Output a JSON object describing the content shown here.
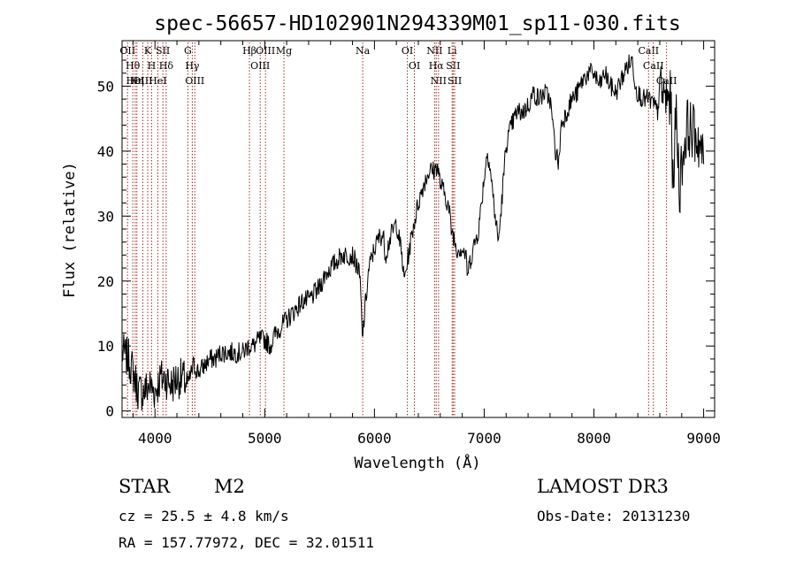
{
  "chart_data": {
    "type": "line",
    "title": "spec-56657-HD102901N294339M01_sp11-030.fits",
    "xlabel": "Wavelength (Å)",
    "ylabel": "Flux (relative)",
    "xlim": [
      3700,
      9100
    ],
    "ylim": [
      -1,
      57
    ],
    "x_ticks": [
      4000,
      5000,
      6000,
      7000,
      8000,
      9000
    ],
    "x_tick_labels": [
      "4000",
      "5000",
      "6000",
      "7000",
      "8000",
      "9000"
    ],
    "y_ticks": [
      0,
      10,
      20,
      30,
      40,
      50
    ],
    "y_tick_labels": [
      "0",
      "10",
      "20",
      "30",
      "40",
      "50"
    ],
    "grid": false,
    "line_color": "#000000",
    "marker_color": "#a0281e",
    "series": [
      {
        "x": [
          3700,
          3760,
          3800,
          3850,
          3900,
          3950,
          4000,
          4050,
          4100,
          4150,
          4200,
          4250,
          4300,
          4350,
          4400,
          4450,
          4500,
          4550,
          4600,
          4650,
          4700,
          4750,
          4800,
          4850,
          4900,
          4950,
          5000,
          5050,
          5100,
          5150,
          5200,
          5250,
          5300,
          5350,
          5400,
          5450,
          5500,
          5550,
          5600,
          5650,
          5700,
          5750,
          5800,
          5850,
          5870,
          5890,
          5910,
          5950,
          6000,
          6050,
          6080,
          6100,
          6150,
          6200,
          6250,
          6270,
          6300,
          6350,
          6400,
          6450,
          6500,
          6550,
          6570,
          6600,
          6650,
          6680,
          6700,
          6720,
          6750,
          6800,
          6830,
          6850,
          6870,
          6900,
          6950,
          7000,
          7030,
          7050,
          7100,
          7130,
          7150,
          7200,
          7250,
          7300,
          7350,
          7400,
          7450,
          7500,
          7550,
          7600,
          7650,
          7680,
          7700,
          7750,
          7800,
          7850,
          7900,
          7950,
          8000,
          8050,
          8100,
          8150,
          8200,
          8250,
          8300,
          8350,
          8380,
          8400,
          8450,
          8500,
          8550,
          8580,
          8600,
          8650,
          8700,
          8720,
          8750,
          8780,
          8800,
          8850,
          8900,
          8950,
          9000
        ],
        "y": [
          9,
          8,
          6,
          3,
          3,
          4,
          3,
          5,
          5,
          4,
          5,
          5,
          4,
          7,
          6,
          7,
          8,
          8,
          9,
          9,
          9,
          9,
          9,
          10,
          10,
          11,
          11,
          10,
          12,
          13,
          14,
          15,
          16,
          17,
          17,
          18,
          19,
          21,
          22,
          23,
          24,
          24,
          24,
          22,
          20,
          11,
          15,
          22,
          25,
          27,
          27,
          24,
          27,
          29,
          24,
          20,
          23,
          28,
          32,
          35,
          37,
          37,
          38,
          35,
          33,
          31,
          28,
          27,
          25,
          25,
          24,
          21,
          23,
          25,
          28,
          36,
          40,
          38,
          30,
          26,
          30,
          41,
          44,
          46,
          46,
          47,
          49,
          48,
          49,
          48,
          40,
          38,
          44,
          46,
          48,
          49,
          51,
          52,
          52,
          50,
          52,
          50,
          49,
          51,
          53,
          54,
          50,
          49,
          48,
          48,
          47,
          46,
          50,
          48,
          48,
          35,
          46,
          34,
          38,
          44,
          43,
          42,
          38
        ]
      }
    ],
    "line_markers": [
      {
        "wl": 3750,
        "label": "OII"
      },
      {
        "wl": 3798,
        "label": "Hθ"
      },
      {
        "wl": 3820,
        "label": "HeI"
      },
      {
        "wl": 3835,
        "label": "Hη"
      },
      {
        "wl": 3889,
        "label": "OIII"
      },
      {
        "wl": 3934,
        "label": "K"
      },
      {
        "wl": 3969,
        "label": "H"
      },
      {
        "wl": 4026,
        "label": "HeI"
      },
      {
        "wl": 4072,
        "label": "SII"
      },
      {
        "wl": 4102,
        "label": "Hδ"
      },
      {
        "wl": 4300,
        "label": "G"
      },
      {
        "wl": 4340,
        "label": "Hγ"
      },
      {
        "wl": 4363,
        "label": "OIII"
      },
      {
        "wl": 4861,
        "label": "Hβ"
      },
      {
        "wl": 4959,
        "label": "OIII"
      },
      {
        "wl": 5007,
        "label": "OIII"
      },
      {
        "wl": 5175,
        "label": "Mg"
      },
      {
        "wl": 5893,
        "label": "Na"
      },
      {
        "wl": 6300,
        "label": "OI"
      },
      {
        "wl": 6364,
        "label": "OI"
      },
      {
        "wl": 6548,
        "label": "NII"
      },
      {
        "wl": 6563,
        "label": "Hα"
      },
      {
        "wl": 6584,
        "label": "NII"
      },
      {
        "wl": 6708,
        "label": "Li"
      },
      {
        "wl": 6717,
        "label": "SII"
      },
      {
        "wl": 6731,
        "label": "SII"
      },
      {
        "wl": 8498,
        "label": "CaII"
      },
      {
        "wl": 8542,
        "label": "CaII"
      },
      {
        "wl": 8662,
        "label": "CaII"
      }
    ]
  },
  "info": {
    "object_class": "STAR",
    "subclass": "M2",
    "survey": "LAMOST DR3",
    "redshift": "cz = 25.5 ± 4.8 km/s",
    "obs_date": "Obs-Date: 20131230",
    "coords": "RA = 157.77972, DEC =  32.01511"
  }
}
